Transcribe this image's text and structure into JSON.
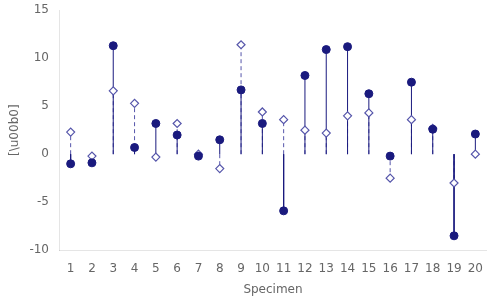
{
  "chart_data": {
    "type": "scatter",
    "xlabel": "Specimen",
    "ylabel": "[\\u00b0]",
    "x": [
      1,
      2,
      3,
      4,
      5,
      6,
      7,
      8,
      9,
      10,
      11,
      12,
      13,
      14,
      15,
      16,
      17,
      18,
      19,
      20
    ],
    "series": [
      {
        "values": [
          -1.0,
          -0.9,
          11.3,
          0.7,
          3.2,
          2.0,
          -0.2,
          1.5,
          6.7,
          3.2,
          -5.9,
          8.2,
          10.9,
          11.2,
          6.3,
          -0.2,
          7.5,
          2.6,
          -8.5,
          2.1
        ],
        "color": "#1a1a7e",
        "marker": "circle",
        "line_style": "solid"
      },
      {
        "values": [
          2.3,
          -0.2,
          6.6,
          5.3,
          -0.3,
          3.2,
          0.0,
          -1.5,
          11.4,
          4.4,
          3.6,
          2.5,
          2.2,
          4.0,
          4.3,
          -2.5,
          3.6,
          2.7,
          -3.0,
          0.0
        ],
        "color": "#5555aa",
        "marker": "diamond",
        "line_style": "dashed"
      }
    ],
    "xlim": [
      0.5,
      20.5
    ],
    "xticks": [
      1,
      2,
      3,
      4,
      5,
      6,
      7,
      8,
      9,
      10,
      11,
      12,
      13,
      14,
      15,
      16,
      17,
      18,
      19,
      20
    ],
    "ylim": [
      -10,
      15
    ],
    "yticks": [
      -10,
      -5,
      0,
      5,
      10,
      15
    ],
    "grid": false
  }
}
